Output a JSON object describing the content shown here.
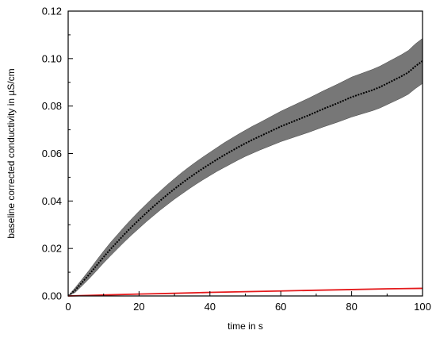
{
  "chart_data": {
    "type": "line",
    "title": "",
    "xlabel": "time in s",
    "ylabel": "baseline corrected conductivity in µS/cm",
    "xlim": [
      0,
      100
    ],
    "ylim": [
      0,
      0.12
    ],
    "x_ticks": [
      "0",
      "20",
      "40",
      "60",
      "80",
      "100"
    ],
    "y_ticks": [
      "0.00",
      "0.02",
      "0.04",
      "0.06",
      "0.08",
      "0.10",
      "0.12"
    ],
    "grid": false,
    "legend": "none",
    "series": [
      {
        "color": "#000000",
        "band_color": "#777777",
        "x": [
          0,
          2,
          4,
          6,
          8,
          10,
          12,
          14,
          16,
          18,
          20,
          22,
          24,
          26,
          28,
          30,
          32,
          34,
          36,
          38,
          40,
          42,
          44,
          46,
          48,
          50,
          52,
          54,
          56,
          58,
          60,
          62,
          64,
          66,
          68,
          70,
          72,
          74,
          76,
          78,
          80,
          82,
          84,
          86,
          88,
          90,
          92,
          94,
          96,
          98,
          100
        ],
        "values": [
          0.0,
          0.0025,
          0.0058,
          0.0092,
          0.0128,
          0.0164,
          0.0198,
          0.023,
          0.0262,
          0.0292,
          0.0321,
          0.0349,
          0.0376,
          0.0402,
          0.0427,
          0.0451,
          0.0474,
          0.0496,
          0.0517,
          0.0537,
          0.0556,
          0.0575,
          0.0593,
          0.061,
          0.0627,
          0.0643,
          0.0658,
          0.0672,
          0.0686,
          0.07,
          0.0714,
          0.0726,
          0.0738,
          0.075,
          0.0762,
          0.0775,
          0.0788,
          0.08,
          0.0812,
          0.0825,
          0.0838,
          0.0848,
          0.0858,
          0.0868,
          0.088,
          0.0895,
          0.091,
          0.0925,
          0.0942,
          0.0968,
          0.099
        ],
        "lower": [
          0.0,
          0.0015,
          0.0044,
          0.0074,
          0.0106,
          0.0139,
          0.017,
          0.02,
          0.023,
          0.0258,
          0.0285,
          0.0312,
          0.0337,
          0.0362,
          0.0385,
          0.0408,
          0.0429,
          0.045,
          0.047,
          0.0489,
          0.0507,
          0.0525,
          0.0541,
          0.0557,
          0.0573,
          0.0588,
          0.0601,
          0.0614,
          0.0626,
          0.0638,
          0.065,
          0.066,
          0.067,
          0.068,
          0.069,
          0.0701,
          0.0712,
          0.0722,
          0.0732,
          0.0743,
          0.0754,
          0.0763,
          0.0772,
          0.0781,
          0.0792,
          0.0806,
          0.082,
          0.0834,
          0.085,
          0.0874,
          0.0895
        ],
        "upper": [
          0.0,
          0.0035,
          0.0072,
          0.011,
          0.015,
          0.0189,
          0.0226,
          0.026,
          0.0294,
          0.0326,
          0.0357,
          0.0386,
          0.0415,
          0.0442,
          0.0469,
          0.0494,
          0.0519,
          0.0542,
          0.0564,
          0.0585,
          0.0605,
          0.0625,
          0.0645,
          0.0663,
          0.0681,
          0.0698,
          0.0715,
          0.073,
          0.0746,
          0.0762,
          0.0778,
          0.0792,
          0.0806,
          0.082,
          0.0834,
          0.0849,
          0.0864,
          0.0878,
          0.0892,
          0.0907,
          0.0922,
          0.0933,
          0.0944,
          0.0955,
          0.0968,
          0.0984,
          0.1,
          0.1016,
          0.1034,
          0.1062,
          0.1085
        ]
      },
      {
        "color": "#e41a1c",
        "x": [
          0,
          10,
          20,
          30,
          40,
          50,
          60,
          70,
          80,
          90,
          100
        ],
        "values": [
          0.0,
          0.0004,
          0.0008,
          0.0011,
          0.0015,
          0.0018,
          0.0021,
          0.0024,
          0.0027,
          0.003,
          0.0032
        ]
      }
    ]
  }
}
